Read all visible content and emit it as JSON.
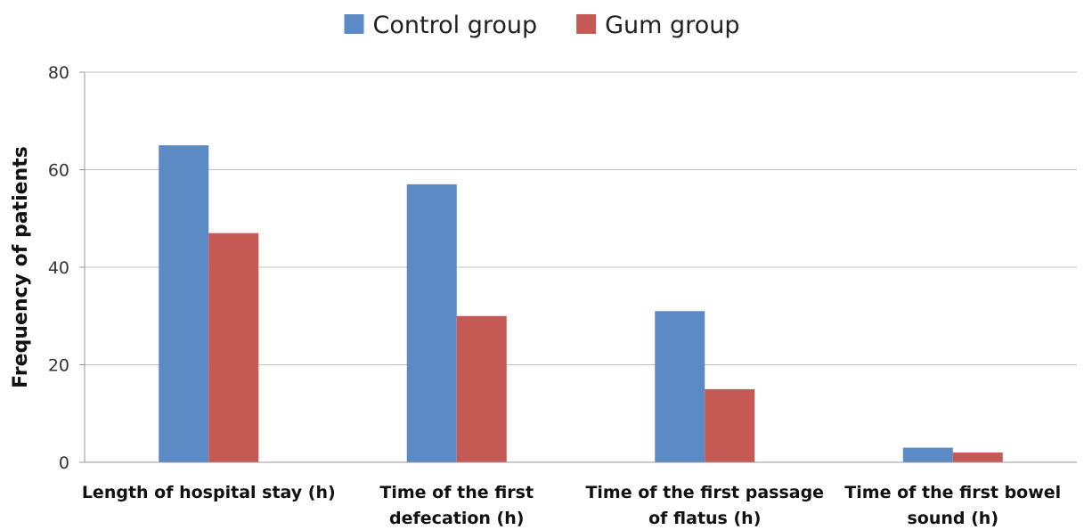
{
  "chart_data": {
    "type": "bar",
    "title": "",
    "xlabel": "",
    "ylabel": "Frequency of patients",
    "ylim": [
      0,
      80
    ],
    "yticks": [
      0,
      20,
      40,
      60,
      80
    ],
    "grid": true,
    "legend_position": "top-center",
    "categories": [
      [
        "Length of hospital stay (h)"
      ],
      [
        "Time of the first",
        "defecation (h)"
      ],
      [
        "Time of the first passage",
        "of flatus (h)"
      ],
      [
        "Time of the first bowel",
        "sound (h)"
      ]
    ],
    "series": [
      {
        "name": "Control group",
        "color": "#5B8AC4",
        "values": [
          65,
          57,
          31,
          3
        ]
      },
      {
        "name": "Gum group",
        "color": "#C55A55",
        "values": [
          47,
          30,
          15,
          2
        ]
      }
    ]
  }
}
